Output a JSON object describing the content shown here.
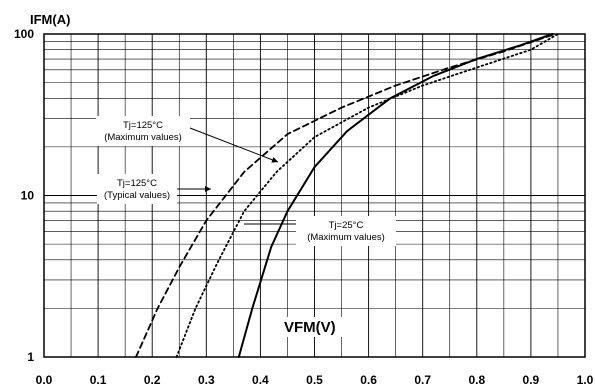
{
  "chart_data": {
    "type": "line",
    "title": "",
    "xlabel": "VFM(V)",
    "ylabel": "IFM(A)",
    "xlim": [
      0.0,
      1.0
    ],
    "ylim": [
      1,
      100
    ],
    "yscale": "log",
    "grid": true,
    "x_ticks": [
      "0.0",
      "0.1",
      "0.2",
      "0.3",
      "0.4",
      "0.5",
      "0.6",
      "0.7",
      "0.8",
      "0.9",
      "1.0"
    ],
    "y_ticks": [
      "1",
      "10",
      "100"
    ],
    "series": [
      {
        "name": "Tj=125°C (Maximum values)",
        "style": "dashed",
        "x": [
          0.17,
          0.21,
          0.25,
          0.3,
          0.37,
          0.45,
          0.55,
          0.65,
          0.75,
          0.85,
          0.945
        ],
        "y": [
          1,
          2,
          3.6,
          7,
          14,
          24,
          35,
          48,
          62,
          78,
          100
        ]
      },
      {
        "name": "Tj=125°C (Typical values)",
        "style": "dotted",
        "x": [
          0.245,
          0.28,
          0.32,
          0.37,
          0.43,
          0.5,
          0.6,
          0.7,
          0.8,
          0.9,
          0.95
        ],
        "y": [
          1,
          2,
          3.8,
          8,
          14,
          23,
          35,
          48,
          62,
          80,
          100
        ]
      },
      {
        "name": "Tj=25°C (Maximum values)",
        "style": "solid",
        "x": [
          0.36,
          0.385,
          0.42,
          0.45,
          0.5,
          0.56,
          0.64,
          0.72,
          0.8,
          0.88,
          0.94
        ],
        "y": [
          1,
          2,
          4.8,
          8,
          15,
          25,
          40,
          55,
          70,
          85,
          100
        ]
      }
    ],
    "annotations": [
      {
        "line1": "Tj=125°C",
        "line2": "(Maximum values)"
      },
      {
        "line1": "Tj=125°C",
        "line2": "(Typical values)"
      },
      {
        "line1": "Tj=25°C",
        "line2": "(Maximum values)"
      }
    ]
  }
}
